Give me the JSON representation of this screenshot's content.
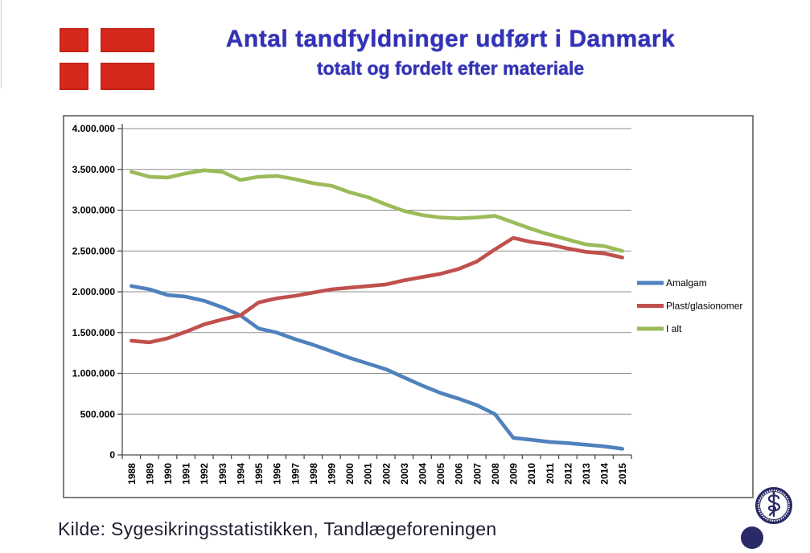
{
  "header": {
    "title": "Antal tandfyldninger udført i Danmark",
    "subtitle": "totalt og fordelt efter materiale",
    "title_color": "#3232bb"
  },
  "flag": {
    "icon": "danish-flag-icon",
    "red": "#d7281c"
  },
  "chart_data": {
    "type": "line",
    "title": "Antal tandfyldninger udført i Danmark",
    "subtitle": "totalt og fordelt efter materiale",
    "x": [
      1988,
      1989,
      1990,
      1991,
      1992,
      1993,
      1994,
      1995,
      1996,
      1997,
      1998,
      1999,
      2000,
      2001,
      2002,
      2003,
      2004,
      2005,
      2006,
      2007,
      2008,
      2009,
      2010,
      2011,
      2012,
      2013,
      2014,
      2015
    ],
    "series": [
      {
        "name": "Amalgam",
        "color": "#4F81BD",
        "values": [
          2070000,
          2030000,
          1960000,
          1940000,
          1890000,
          1810000,
          1710000,
          1550000,
          1500000,
          1420000,
          1350000,
          1270000,
          1190000,
          1120000,
          1050000,
          950000,
          850000,
          760000,
          690000,
          610000,
          500000,
          210000,
          185000,
          160000,
          145000,
          125000,
          105000,
          75000
        ]
      },
      {
        "name": "Plast/glasionomer",
        "color": "#C0504D",
        "values": [
          1400000,
          1380000,
          1430000,
          1510000,
          1600000,
          1660000,
          1710000,
          1870000,
          1920000,
          1950000,
          1990000,
          2030000,
          2050000,
          2070000,
          2090000,
          2140000,
          2180000,
          2220000,
          2280000,
          2370000,
          2520000,
          2660000,
          2610000,
          2580000,
          2530000,
          2490000,
          2470000,
          2420000
        ]
      },
      {
        "name": "I alt",
        "color": "#9BBB59",
        "values": [
          3470000,
          3410000,
          3400000,
          3450000,
          3490000,
          3470000,
          3370000,
          3410000,
          3420000,
          3380000,
          3330000,
          3300000,
          3220000,
          3160000,
          3070000,
          2990000,
          2940000,
          2910000,
          2900000,
          2910000,
          2930000,
          2850000,
          2770000,
          2700000,
          2640000,
          2580000,
          2560000,
          2500000
        ]
      }
    ],
    "ylim": [
      0,
      4000000
    ],
    "ytick_step": 500000,
    "ytick_labels": [
      "0",
      "500.000",
      "1.000.000",
      "1.500.000",
      "2.000.000",
      "2.500.000",
      "3.000.000",
      "3.500.000",
      "4.000.000"
    ],
    "grid": true,
    "legend_position": "right"
  },
  "footer": {
    "source_label": "Kilde: Sygesikringsstatistikken, Tandlægeforeningen"
  },
  "seal": {
    "icon": "medical-faculty-seal-icon",
    "color": "#2a2a66"
  }
}
